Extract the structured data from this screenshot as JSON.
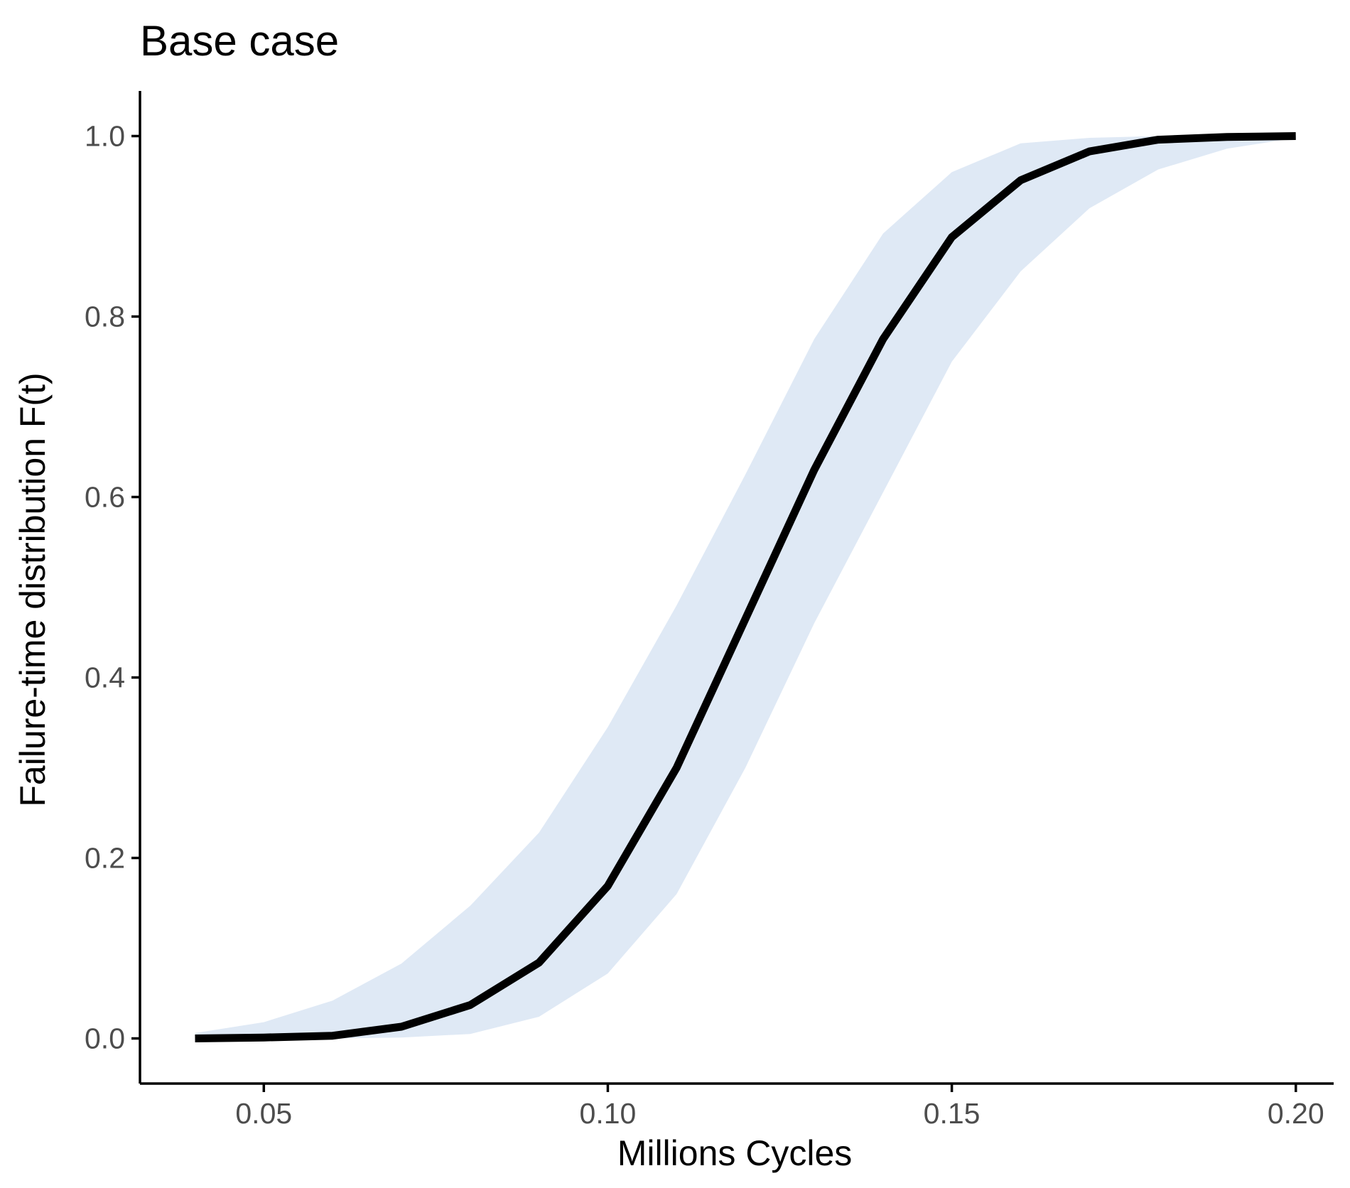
{
  "chart_data": {
    "type": "line",
    "title": "Base case",
    "xlabel": "Millions Cycles",
    "ylabel": "Failure-time distribution F(t)",
    "xlim": [
      0.032,
      0.2055
    ],
    "ylim": [
      -0.05,
      1.05
    ],
    "xticks": [
      0.05,
      0.1,
      0.15,
      0.2
    ],
    "xtick_labels": [
      "0.05",
      "0.10",
      "0.15",
      "0.20"
    ],
    "yticks": [
      0.0,
      0.2,
      0.4,
      0.6,
      0.8,
      1.0
    ],
    "ytick_labels": [
      "0.0",
      "0.2",
      "0.4",
      "0.6",
      "0.8",
      "1.0"
    ],
    "grid": false,
    "legend": "none",
    "x": [
      0.04,
      0.05,
      0.06,
      0.07,
      0.08,
      0.09,
      0.1,
      0.11,
      0.12,
      0.13,
      0.14,
      0.15,
      0.16,
      0.17,
      0.18,
      0.19,
      0.2
    ],
    "series": [
      {
        "values": [
          0.0,
          0.001,
          0.003,
          0.013,
          0.037,
          0.084,
          0.169,
          0.3,
          0.465,
          0.63,
          0.775,
          0.888,
          0.951,
          0.983,
          0.996,
          0.999,
          1.0
        ]
      }
    ],
    "band": {
      "lower": [
        0.0,
        0.0,
        0.0,
        0.001,
        0.005,
        0.024,
        0.072,
        0.16,
        0.3,
        0.46,
        0.605,
        0.75,
        0.85,
        0.92,
        0.963,
        0.986,
        0.998
      ],
      "upper": [
        0.006,
        0.018,
        0.042,
        0.083,
        0.147,
        0.228,
        0.345,
        0.48,
        0.625,
        0.775,
        0.892,
        0.96,
        0.992,
        0.998,
        1.0,
        1.0,
        1.0
      ]
    },
    "colors": {
      "line": "#000000",
      "band": "#dfe9f5",
      "axis": "#000000",
      "tick_text": "#4d4d4d"
    }
  }
}
